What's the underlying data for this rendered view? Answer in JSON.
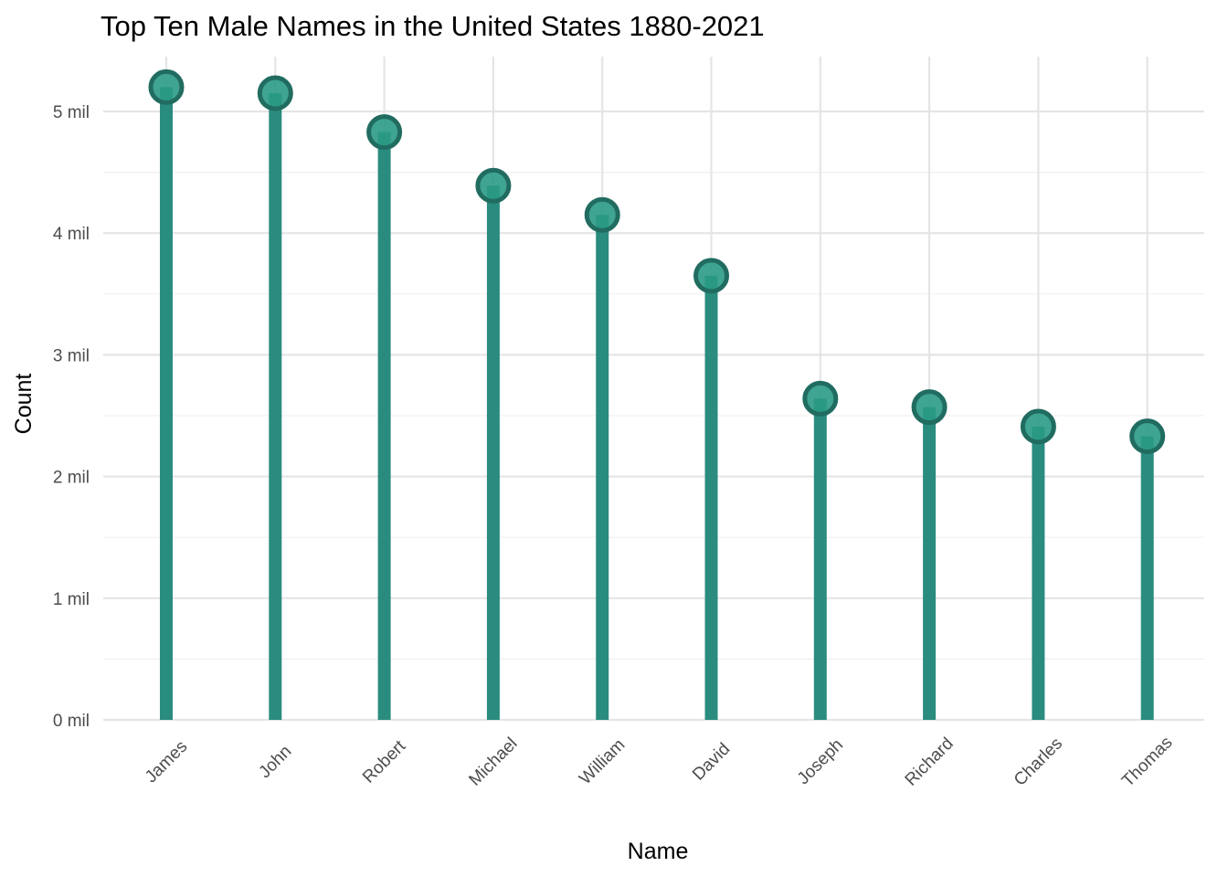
{
  "chart_data": {
    "type": "lollipop",
    "title": "Top Ten Male Names in the United States 1880-2021",
    "xlabel": "Name",
    "ylabel": "Count",
    "categories": [
      "James",
      "John",
      "Robert",
      "Michael",
      "William",
      "David",
      "Joseph",
      "Richard",
      "Charles",
      "Thomas"
    ],
    "values": [
      5.2,
      5.15,
      4.83,
      4.39,
      4.15,
      3.65,
      2.64,
      2.57,
      2.41,
      2.33
    ],
    "value_unit": "mil",
    "ylim": [
      0,
      5.45
    ],
    "y_ticks": [
      0,
      1,
      2,
      3,
      4,
      5
    ],
    "y_tick_labels": [
      "0 mil",
      "1 mil",
      "2 mil",
      "3 mil",
      "4 mil",
      "5 mil"
    ],
    "grid": true,
    "legend": "none",
    "colors": {
      "stem": "#2a8c7e",
      "point_fill": "#2a9a85",
      "point_edge": "#216c60"
    }
  }
}
